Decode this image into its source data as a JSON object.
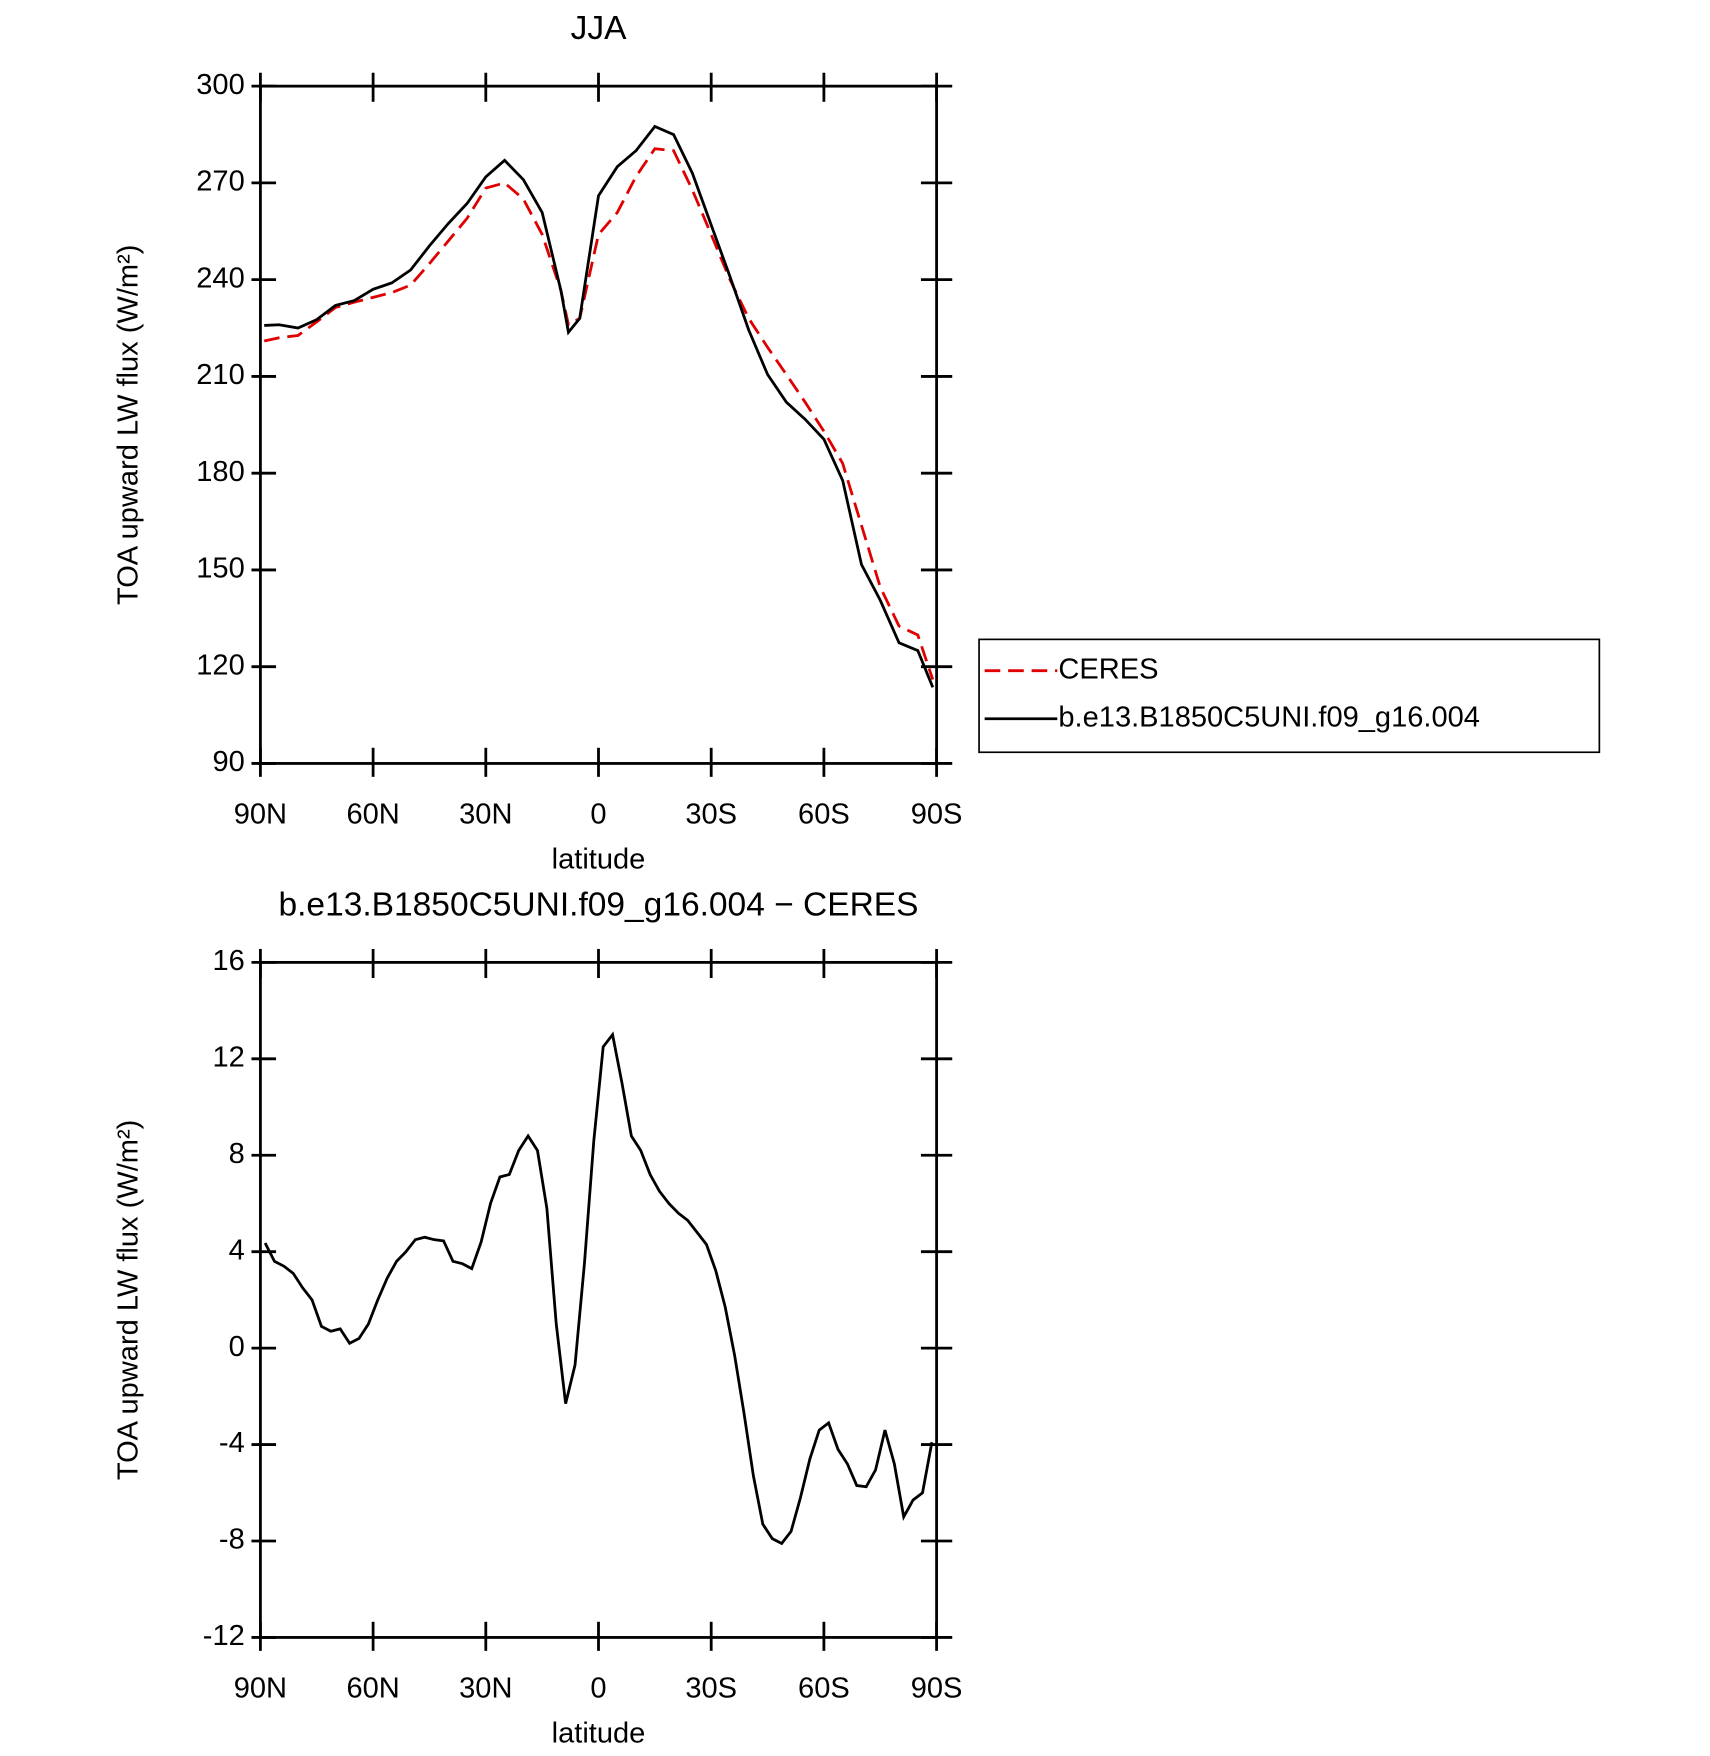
{
  "chart_data": [
    {
      "type": "line",
      "title": "JJA",
      "x_label": "latitude",
      "y_label": "TOA upward LW flux (W/m²)",
      "x": [
        89,
        85,
        80,
        75,
        70,
        65,
        60,
        55,
        50,
        45,
        40,
        35,
        30,
        25,
        20,
        15,
        10,
        8,
        5,
        0,
        -5,
        -10,
        -15,
        -20,
        -25,
        -30,
        -35,
        -40,
        -45,
        -50,
        -55,
        -60,
        -65,
        -70,
        -75,
        -80,
        -85,
        -89
      ],
      "series": [
        {
          "name": "CERES",
          "color": "#e00000",
          "dash": true,
          "values": [
            221,
            222,
            222.7,
            226.9,
            231.4,
            233,
            234.5,
            236,
            238.3,
            245,
            252,
            259,
            268.4,
            270,
            265,
            254,
            236.6,
            226,
            228,
            254,
            260.8,
            272,
            280.6,
            280,
            267.8,
            254,
            240,
            228,
            219,
            210.6,
            202,
            193,
            183,
            163.8,
            144.7,
            132.6,
            129.8,
            116
          ]
        },
        {
          "name": "b.e13.B1850C5UNI.f09_g16.004",
          "color": "#000000",
          "dash": false,
          "values": [
            225.8,
            226,
            225,
            227.6,
            232,
            233.5,
            237,
            239,
            243,
            250.5,
            257.4,
            263.6,
            271.9,
            277,
            271,
            260.8,
            236.6,
            223.7,
            228,
            266,
            275,
            280,
            287.5,
            285,
            273,
            257,
            241,
            224.4,
            210.6,
            202,
            196.7,
            190.5,
            177.7,
            151.7,
            140.6,
            127.4,
            125,
            113.6
          ]
        }
      ],
      "xlim": [
        90,
        -90
      ],
      "xticks": [
        {
          "value": 90,
          "label": "90N"
        },
        {
          "value": 60,
          "label": "60N"
        },
        {
          "value": 30,
          "label": "30N"
        },
        0,
        {
          "value": -30,
          "label": "30S"
        },
        {
          "value": -60,
          "label": "60S"
        },
        {
          "value": -90,
          "label": "90S"
        }
      ],
      "ylim": [
        90,
        300
      ],
      "yticks": [
        90,
        120,
        150,
        180,
        210,
        240,
        270,
        300
      ],
      "legend": "right"
    },
    {
      "type": "line",
      "title": "b.e13.B1850C5UNI.f09_g16.004 − CERES",
      "x_label": "latitude",
      "y_label": "TOA upward LW flux (W/m²)",
      "x": [
        88.75,
        86.25,
        83.75,
        81.25,
        78.75,
        76.25,
        73.75,
        71.25,
        68.75,
        66.25,
        63.75,
        61.25,
        58.75,
        56.25,
        53.75,
        51.25,
        48.75,
        46.25,
        43.75,
        41.25,
        38.75,
        36.25,
        33.75,
        31.25,
        28.75,
        26.25,
        23.75,
        21.25,
        18.75,
        16.25,
        13.75,
        11.25,
        8.75,
        6.25,
        3.75,
        1.25,
        -1.25,
        -3.75,
        -6.25,
        -8.75,
        -11.25,
        -13.75,
        -16.25,
        -18.75,
        -21.25,
        -23.75,
        -26.25,
        -28.75,
        -31.25,
        -33.75,
        -36.25,
        -38.75,
        -41.25,
        -43.75,
        -46.25,
        -48.75,
        -51.25,
        -53.75,
        -56.25,
        -58.75,
        -61.25,
        -63.75,
        -66.25,
        -68.75,
        -71.25,
        -73.75,
        -76.25,
        -78.75,
        -81.25,
        -83.75,
        -86.25,
        -88.75
      ],
      "series": [
        {
          "color": "#000000",
          "dash": false,
          "values": [
            4.36,
            3.6,
            3.4,
            3.1,
            2.5,
            2.0,
            0.9,
            0.7,
            0.8,
            0.2,
            0.4,
            1.0,
            2.0,
            2.9,
            3.6,
            4.0,
            4.5,
            4.6,
            4.5,
            4.45,
            3.6,
            3.5,
            3.3,
            4.4,
            6.0,
            7.1,
            7.2,
            8.2,
            8.8,
            8.2,
            5.8,
            1.0,
            -2.3,
            -0.7,
            3.5,
            8.6,
            12.5,
            13.0,
            11.0,
            8.8,
            8.2,
            7.2,
            6.5,
            6.0,
            5.6,
            5.3,
            4.8,
            4.3,
            3.2,
            1.7,
            -0.3,
            -2.7,
            -5.3,
            -7.3,
            -7.9,
            -8.1,
            -7.6,
            -6.2,
            -4.6,
            -3.4,
            -3.1,
            -4.2,
            -4.8,
            -5.7,
            -5.75,
            -5.05,
            -3.4,
            -4.8,
            -7.0,
            -6.3,
            -6.0,
            -3.9
          ]
        }
      ],
      "xlim": [
        90,
        -90
      ],
      "xticks": [
        {
          "value": 90,
          "label": "90N"
        },
        {
          "value": 60,
          "label": "60N"
        },
        {
          "value": 30,
          "label": "30N"
        },
        0,
        {
          "value": -30,
          "label": "30S"
        },
        {
          "value": -60,
          "label": "60S"
        },
        {
          "value": -90,
          "label": "90S"
        }
      ],
      "ylim": [
        -12,
        16
      ],
      "yticks": [
        -12,
        -8,
        -4,
        0,
        4,
        8,
        12,
        16
      ]
    }
  ]
}
